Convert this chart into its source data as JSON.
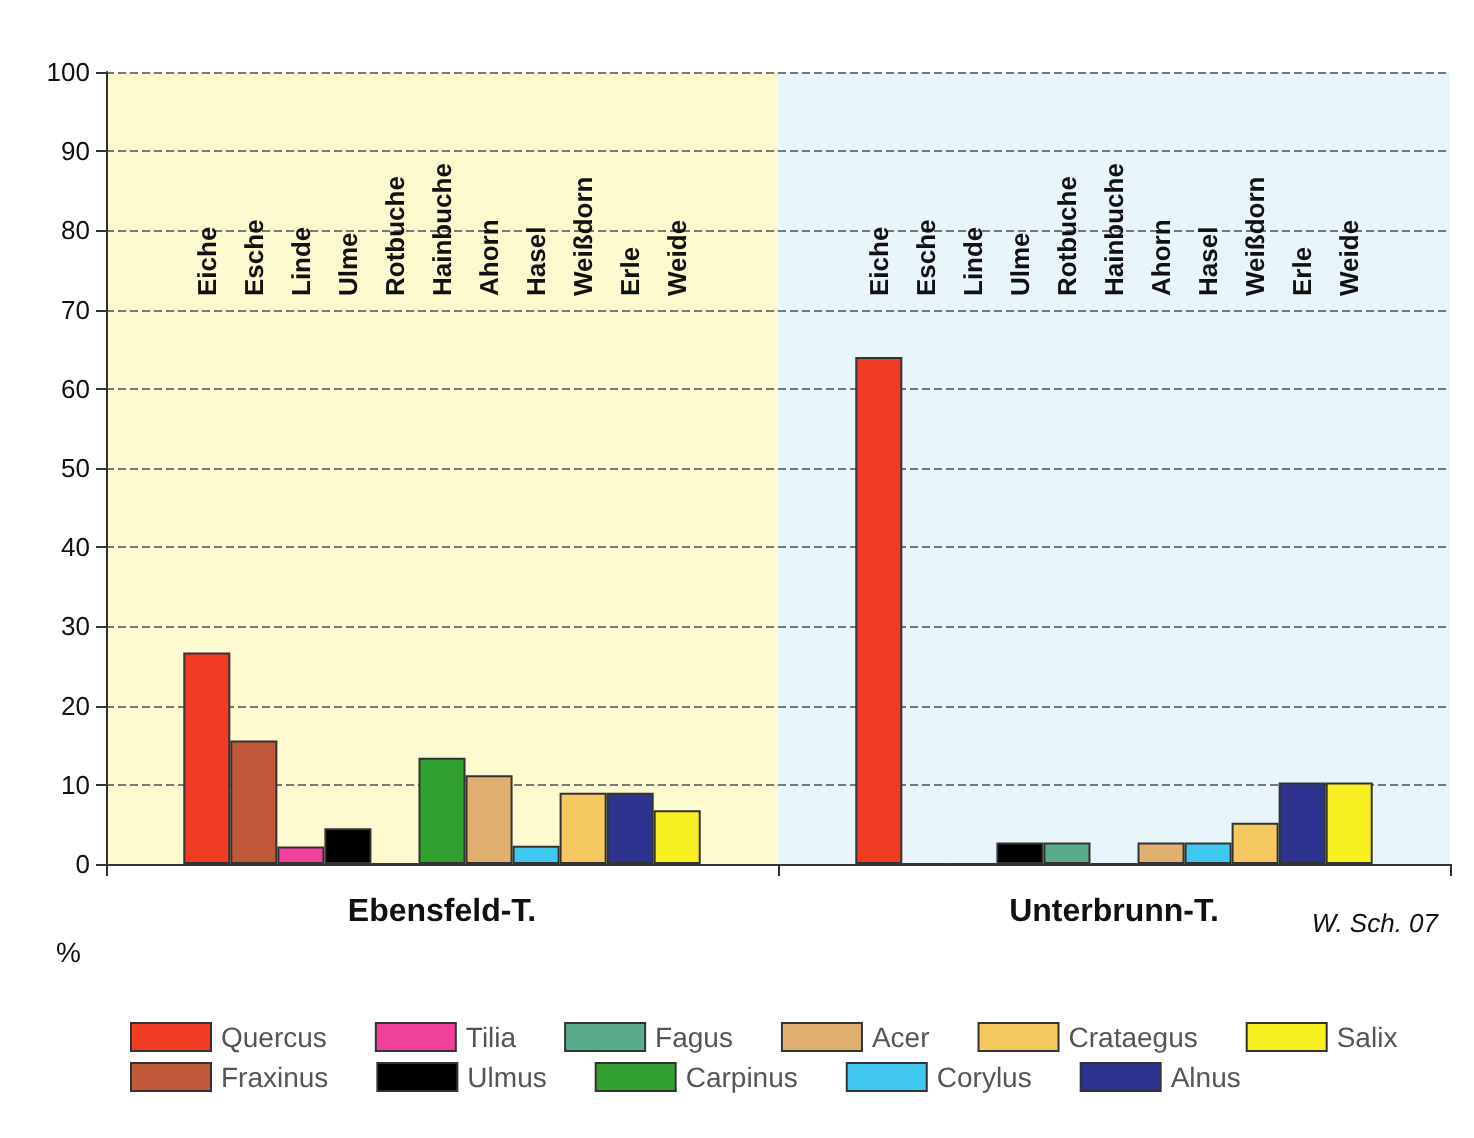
{
  "chart_data": {
    "type": "bar",
    "categories": [
      "Ebensfeld-T.",
      "Unterbrunn-T."
    ],
    "ylabel": "%",
    "ylim": [
      0,
      100
    ],
    "yticks": [
      0,
      10,
      20,
      30,
      40,
      50,
      60,
      70,
      80,
      90,
      100
    ],
    "grid": "y",
    "legend": "bottom",
    "bands": [
      {
        "axis": "x",
        "from": "Ebensfeld-T.",
        "to": "Ebensfeld-T.",
        "color": "#fdfad0"
      },
      {
        "axis": "x",
        "from": "Unterbrunn-T.",
        "to": "Unterbrunn-T.",
        "color": "#e8f6fc"
      }
    ],
    "annotations": [
      "Eiche",
      "Esche",
      "Linde",
      "Ulme",
      "Rotbuche",
      "Hainbuche",
      "Ahorn",
      "Hasel",
      "Weißdorn",
      "Erle",
      "Weide",
      "W. Sch. 07"
    ],
    "series": [
      {
        "name": "Quercus",
        "color": "#f03c24",
        "values": [
          26.7,
          64
        ]
      },
      {
        "name": "Fraxinus",
        "color": "#c0583a",
        "values": [
          15.6,
          0
        ]
      },
      {
        "name": "Tilia",
        "color": "#f0409a",
        "values": [
          2.2,
          0
        ]
      },
      {
        "name": "Ulmus",
        "color": "#000000",
        "values": [
          4.5,
          2.7
        ]
      },
      {
        "name": "Fagus",
        "color": "#5aab8a",
        "values": [
          0,
          2.7
        ]
      },
      {
        "name": "Carpinus",
        "color": "#30a030",
        "values": [
          13.4,
          0
        ]
      },
      {
        "name": "Acer",
        "color": "#e0b070",
        "values": [
          11.2,
          2.7
        ]
      },
      {
        "name": "Corylus",
        "color": "#40c8f0",
        "values": [
          2.3,
          2.7
        ]
      },
      {
        "name": "Crataegus",
        "color": "#f5c860",
        "values": [
          9,
          5.2
        ]
      },
      {
        "name": "Alnus",
        "color": "#2e3390",
        "values": [
          9,
          10.3
        ]
      },
      {
        "name": "Salix",
        "color": "#f8f020",
        "values": [
          6.8,
          10.3
        ]
      }
    ]
  }
}
